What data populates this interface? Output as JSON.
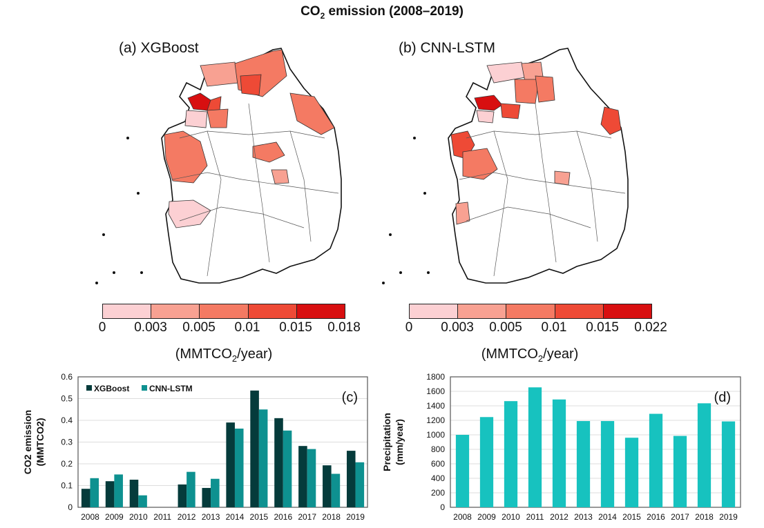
{
  "title": {
    "pre": "CO",
    "sub": "2",
    "post": " emission (2008–2019)"
  },
  "maps": [
    {
      "label": "(a) XGBoost",
      "legend_ticks": [
        "0",
        "0.003",
        "0.005",
        "0.01",
        "0.015",
        "0.018"
      ],
      "unit_pre": "(MMTCO",
      "unit_sub": "2",
      "unit_post": "/year)"
    },
    {
      "label": "(b) CNN-LSTM",
      "legend_ticks": [
        "0",
        "0.003",
        "0.005",
        "0.01",
        "0.015",
        "0.022"
      ],
      "unit_pre": "(MMTCO",
      "unit_sub": "2",
      "unit_post": "/year)"
    }
  ],
  "legend_colors": [
    "#fcd0d3",
    "#f8a192",
    "#f47a63",
    "#ee4a36",
    "#d80f10"
  ],
  "chart_data": [
    {
      "type": "bar",
      "panel": "(c)",
      "categories": [
        "2008",
        "2009",
        "2010",
        "2011",
        "2012",
        "2013",
        "2014",
        "2015",
        "2016",
        "2017",
        "2018",
        "2019"
      ],
      "series": [
        {
          "name": "XGBoost",
          "color": "#053b3b",
          "values": [
            0.085,
            0.12,
            0.127,
            0,
            0.105,
            0.089,
            0.39,
            0.537,
            0.41,
            0.282,
            0.193,
            0.26
          ]
        },
        {
          "name": "CNN-LSTM",
          "color": "#0e9190",
          "values": [
            0.134,
            0.151,
            0.055,
            0,
            0.163,
            0.131,
            0.362,
            0.45,
            0.353,
            0.268,
            0.154,
            0.207
          ]
        }
      ],
      "ylabel_line1": "CO2 emission",
      "ylabel_line2": "(MMTCO2)",
      "ylim": [
        0,
        0.6
      ],
      "yticks": [
        "0",
        "0.1",
        "0.2",
        "0.3",
        "0.4",
        "0.5",
        "0.6"
      ],
      "legend_position": "top-left",
      "grid": true
    },
    {
      "type": "bar",
      "panel": "(d)",
      "categories": [
        "2008",
        "2009",
        "2010",
        "2011",
        "2012",
        "2013",
        "2014",
        "2015",
        "2016",
        "2017",
        "2018",
        "2019"
      ],
      "series": [
        {
          "name": "Precipitation",
          "color": "#17c2bf",
          "values": [
            1000,
            1245,
            1465,
            1655,
            1488,
            1190,
            1190,
            960,
            1290,
            985,
            1435,
            1185
          ]
        }
      ],
      "ylabel_line1": "Precipitation",
      "ylabel_line2": "(mm/year)",
      "ylim": [
        0,
        1800
      ],
      "yticks": [
        "0",
        "200",
        "400",
        "600",
        "800",
        "1000",
        "1200",
        "1400",
        "1600",
        "1800"
      ],
      "grid": true
    }
  ]
}
